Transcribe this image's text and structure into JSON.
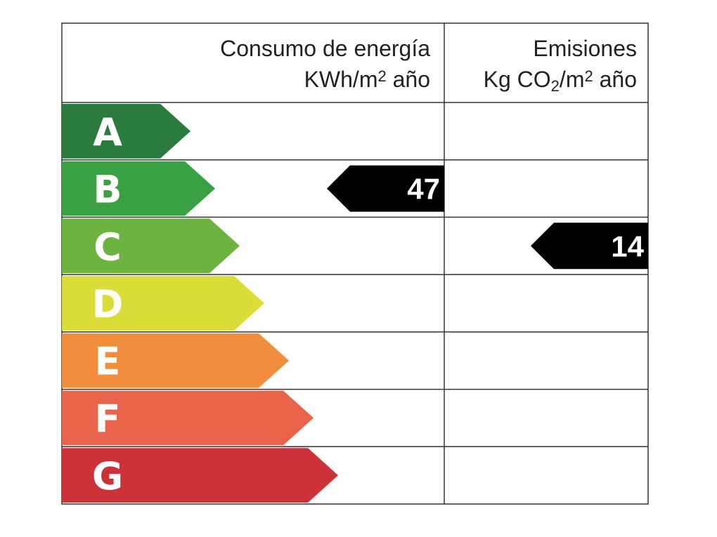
{
  "header": {
    "energy": {
      "title": "Consumo de energía",
      "unit": [
        "KWh/m",
        "2",
        " año"
      ]
    },
    "emissions": {
      "title": "Emisiones",
      "unit": [
        "Kg CO",
        "2",
        "/m",
        "2",
        " año"
      ]
    }
  },
  "classes": [
    {
      "letter": "A",
      "color": "#2b7a3e",
      "energy": null,
      "emissions": null
    },
    {
      "letter": "B",
      "color": "#3aa142",
      "energy": 47,
      "emissions": null
    },
    {
      "letter": "C",
      "color": "#6cb33f",
      "energy": null,
      "emissions": 14
    },
    {
      "letter": "D",
      "color": "#dadc37",
      "energy": null,
      "emissions": null
    },
    {
      "letter": "E",
      "color": "#f08e3d",
      "energy": null,
      "emissions": null
    },
    {
      "letter": "F",
      "color": "#e9634b",
      "energy": null,
      "emissions": null
    },
    {
      "letter": "G",
      "color": "#cc3237",
      "energy": null,
      "emissions": null
    }
  ]
}
